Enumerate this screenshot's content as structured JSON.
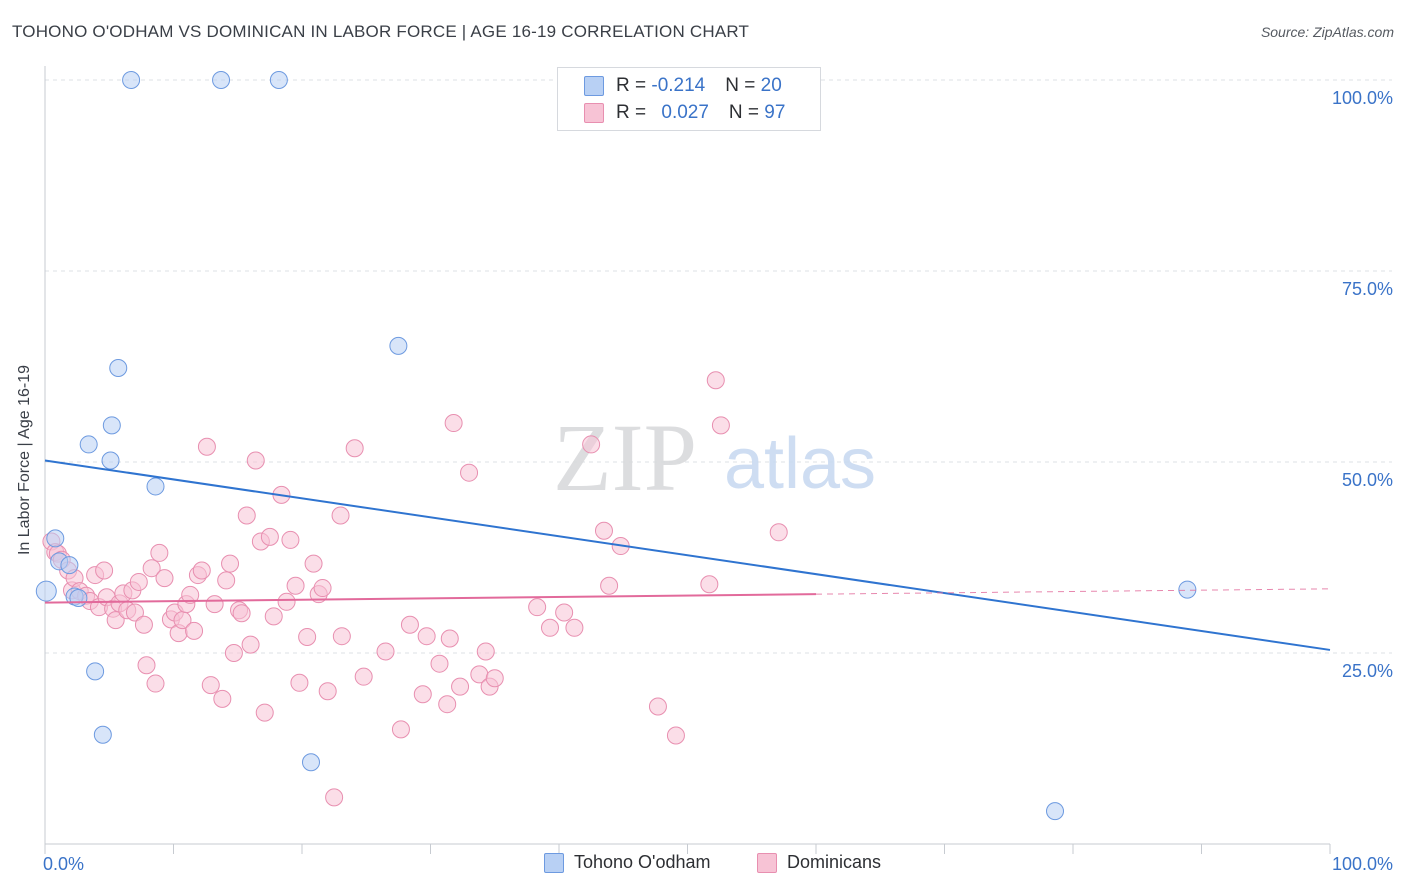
{
  "title": "TOHONO O'ODHAM VS DOMINICAN IN LABOR FORCE | AGE 16-19 CORRELATION CHART",
  "source": "Source: ZipAtlas.com",
  "watermark": {
    "zip": "ZIP",
    "atlas": "atlas"
  },
  "colors": {
    "blue_fill": "#b8d0f4",
    "blue_stroke": "#6d9ae0",
    "blue_line": "#2f74d0",
    "pink_fill": "#f7c3d5",
    "pink_stroke": "#e88fb0",
    "pink_line": "#e26a9b",
    "axis_text": "#3a73c8",
    "grid": "#dde0e5"
  },
  "legend": {
    "rows": [
      {
        "r_label": "R = ",
        "r_value": "-0.214",
        "n_label": "N = ",
        "n_value": "20"
      },
      {
        "r_label": "R = ",
        "r_value": "0.027",
        "n_label": "N = ",
        "n_value": "97"
      }
    ]
  },
  "bottom_legend": {
    "series1": "Tohono O'odham",
    "series2": "Dominicans"
  },
  "chart_data": {
    "type": "scatter",
    "xlabel": "",
    "ylabel": "In Labor Force | Age 16-19",
    "xlim": [
      0,
      100
    ],
    "ylim": [
      0,
      100
    ],
    "x_tick_labels": [
      {
        "value": 0,
        "label": "0.0%"
      },
      {
        "value": 100,
        "label": "100.0%"
      }
    ],
    "y_tick_labels": [
      {
        "value": 100,
        "label": "100.0%"
      },
      {
        "value": 75,
        "label": "75.0%"
      },
      {
        "value": 50,
        "label": "50.0%"
      },
      {
        "value": 25,
        "label": "25.0%"
      }
    ],
    "series": [
      {
        "name": "Tohono O'odham",
        "r": -0.214,
        "n": 20,
        "trend": {
          "x0": 0,
          "y0": 50.2,
          "x1": 100,
          "y1": 25.4
        },
        "points": [
          [
            6.7,
            100
          ],
          [
            13.7,
            100
          ],
          [
            18.2,
            100
          ],
          [
            27.5,
            65.2
          ],
          [
            5.7,
            62.3
          ],
          [
            5.2,
            54.8
          ],
          [
            3.4,
            52.3
          ],
          [
            5.1,
            50.2
          ],
          [
            8.6,
            46.8
          ],
          [
            0.8,
            40.0
          ],
          [
            1.1,
            37.0
          ],
          [
            1.9,
            36.5
          ],
          [
            0.1,
            33.1
          ],
          [
            2.3,
            32.4
          ],
          [
            2.6,
            32.2
          ],
          [
            3.9,
            22.6
          ],
          [
            4.5,
            14.3
          ],
          [
            20.7,
            10.7
          ],
          [
            78.6,
            4.3
          ],
          [
            88.9,
            33.3
          ]
        ]
      },
      {
        "name": "Dominicans",
        "r": 0.027,
        "n": 97,
        "trend": {
          "x0": 0,
          "y0": 31.6,
          "x1": 60,
          "y1": 32.7,
          "dash_x1": 100,
          "dash_y1": 33.4
        },
        "points": [
          [
            0.5,
            39.6
          ],
          [
            0.8,
            38.2
          ],
          [
            1.0,
            38.0
          ],
          [
            1.3,
            37.2
          ],
          [
            1.8,
            35.8
          ],
          [
            2.1,
            33.2
          ],
          [
            2.3,
            34.8
          ],
          [
            2.7,
            33.1
          ],
          [
            3.2,
            32.5
          ],
          [
            3.5,
            31.8
          ],
          [
            3.9,
            35.2
          ],
          [
            4.2,
            31.0
          ],
          [
            4.6,
            35.8
          ],
          [
            4.8,
            32.3
          ],
          [
            5.3,
            30.8
          ],
          [
            5.5,
            29.3
          ],
          [
            5.8,
            31.5
          ],
          [
            6.1,
            32.8
          ],
          [
            6.4,
            30.6
          ],
          [
            6.8,
            33.2
          ],
          [
            7.0,
            30.3
          ],
          [
            7.3,
            34.3
          ],
          [
            7.7,
            28.7
          ],
          [
            7.9,
            23.4
          ],
          [
            8.3,
            36.1
          ],
          [
            8.6,
            21.0
          ],
          [
            8.9,
            38.1
          ],
          [
            9.3,
            34.8
          ],
          [
            9.8,
            29.4
          ],
          [
            10.1,
            30.3
          ],
          [
            10.4,
            27.6
          ],
          [
            10.7,
            29.3
          ],
          [
            11.0,
            31.4
          ],
          [
            11.3,
            32.6
          ],
          [
            11.6,
            27.9
          ],
          [
            11.9,
            35.2
          ],
          [
            12.2,
            35.8
          ],
          [
            12.6,
            52.0
          ],
          [
            12.9,
            20.8
          ],
          [
            13.2,
            31.4
          ],
          [
            13.8,
            19.0
          ],
          [
            14.1,
            34.5
          ],
          [
            14.4,
            36.7
          ],
          [
            14.7,
            25.0
          ],
          [
            15.1,
            30.6
          ],
          [
            15.3,
            30.2
          ],
          [
            15.7,
            43.0
          ],
          [
            16.0,
            26.1
          ],
          [
            16.4,
            50.2
          ],
          [
            16.8,
            39.6
          ],
          [
            17.1,
            17.2
          ],
          [
            17.5,
            40.2
          ],
          [
            17.8,
            29.8
          ],
          [
            18.4,
            45.7
          ],
          [
            18.8,
            31.7
          ],
          [
            19.1,
            39.8
          ],
          [
            19.5,
            33.8
          ],
          [
            19.8,
            21.1
          ],
          [
            20.4,
            27.1
          ],
          [
            20.9,
            36.7
          ],
          [
            21.3,
            32.7
          ],
          [
            21.6,
            33.5
          ],
          [
            22.0,
            20.0
          ],
          [
            22.5,
            6.1
          ],
          [
            23.1,
            27.2
          ],
          [
            23.0,
            43.0
          ],
          [
            24.1,
            51.8
          ],
          [
            24.8,
            21.9
          ],
          [
            26.5,
            25.2
          ],
          [
            27.7,
            15.0
          ],
          [
            28.4,
            28.7
          ],
          [
            29.4,
            19.6
          ],
          [
            29.7,
            27.2
          ],
          [
            30.7,
            23.6
          ],
          [
            31.3,
            18.3
          ],
          [
            31.5,
            26.9
          ],
          [
            31.8,
            55.1
          ],
          [
            32.3,
            20.6
          ],
          [
            33.0,
            48.6
          ],
          [
            33.8,
            22.2
          ],
          [
            34.3,
            25.2
          ],
          [
            34.6,
            20.6
          ],
          [
            35.0,
            21.7
          ],
          [
            38.3,
            31.0
          ],
          [
            39.3,
            28.3
          ],
          [
            40.4,
            30.3
          ],
          [
            41.2,
            28.3
          ],
          [
            42.5,
            52.3
          ],
          [
            43.5,
            41.0
          ],
          [
            43.9,
            33.8
          ],
          [
            44.8,
            39.0
          ],
          [
            47.7,
            18.0
          ],
          [
            49.1,
            14.2
          ],
          [
            51.7,
            34.0
          ],
          [
            52.2,
            60.7
          ],
          [
            52.6,
            54.8
          ],
          [
            57.1,
            40.8
          ]
        ]
      }
    ]
  }
}
